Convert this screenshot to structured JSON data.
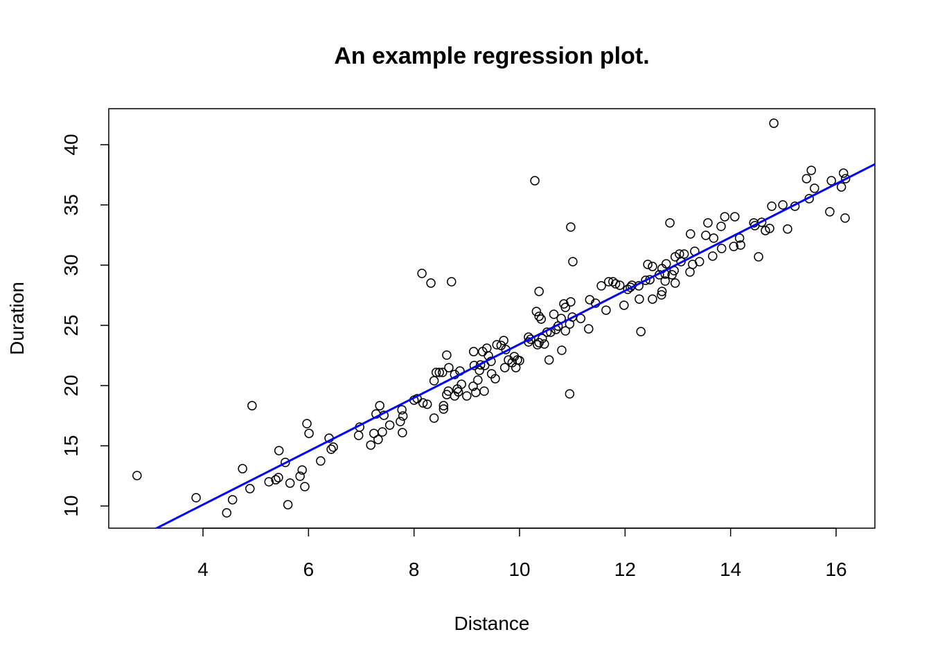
{
  "chart_data": {
    "type": "scatter",
    "title": "An example regression plot.",
    "x_label": "Distance",
    "y_label": "Duration",
    "xlim": [
      2.214,
      16.735
    ],
    "ylim": [
      8.16,
      42.99
    ],
    "xticks": [
      4,
      6,
      8,
      10,
      12,
      14,
      16
    ],
    "yticks": [
      10,
      15,
      20,
      25,
      30,
      35,
      40
    ],
    "point_color": "#000000",
    "regression": {
      "intercept": 1.23,
      "slope": 2.22,
      "color": "#0000ff"
    },
    "x": [
      2.75,
      3.87,
      4.45,
      4.56,
      4.75,
      4.89,
      4.93,
      5.25,
      5.38,
      5.43,
      5.44,
      5.56,
      5.61,
      5.65,
      5.84,
      5.88,
      5.93,
      5.97,
      6.01,
      6.23,
      6.39,
      6.43,
      6.47,
      6.95,
      6.97,
      7.18,
      7.24,
      7.28,
      7.32,
      7.35,
      7.4,
      7.43,
      7.54,
      7.74,
      7.77,
      7.79,
      7.78,
      8.0,
      8.06,
      8.15,
      8.17,
      8.25,
      8.32,
      8.38,
      8.38,
      8.42,
      8.48,
      8.54,
      8.56,
      8.56,
      8.62,
      8.62,
      8.65,
      8.66,
      8.71,
      8.77,
      8.77,
      8.82,
      8.84,
      8.87,
      8.9,
      9.0,
      9.12,
      9.13,
      9.14,
      9.17,
      9.21,
      9.24,
      9.26,
      9.3,
      9.33,
      9.34,
      9.38,
      9.41,
      9.46,
      9.47,
      9.54,
      9.57,
      9.65,
      9.7,
      9.72,
      9.74,
      9.79,
      9.86,
      9.9,
      9.93,
      9.96,
      10.0,
      10.17,
      10.17,
      10.21,
      10.29,
      10.32,
      10.34,
      10.37,
      10.37,
      10.37,
      10.41,
      10.43,
      10.47,
      10.52,
      10.56,
      10.59,
      10.65,
      10.69,
      10.73,
      10.79,
      10.8,
      10.84,
      10.87,
      10.87,
      10.95,
      10.95,
      10.97,
      10.97,
      11.0,
      11.01,
      11.16,
      11.31,
      11.33,
      11.44,
      11.55,
      11.64,
      11.69,
      11.77,
      11.82,
      11.9,
      11.98,
      12.05,
      12.1,
      12.13,
      12.26,
      12.27,
      12.3,
      12.39,
      12.43,
      12.47,
      12.52,
      12.52,
      12.65,
      12.69,
      12.7,
      12.7,
      12.76,
      12.76,
      12.78,
      12.85,
      12.89,
      12.93,
      12.95,
      12.95,
      13.03,
      13.06,
      13.12,
      13.23,
      13.24,
      13.28,
      13.32,
      13.41,
      13.53,
      13.57,
      13.66,
      13.68,
      13.82,
      13.83,
      13.89,
      14.06,
      14.08,
      14.17,
      14.19,
      14.44,
      14.46,
      14.53,
      14.59,
      14.66,
      14.74,
      14.78,
      14.82,
      14.99,
      15.08,
      15.22,
      15.44,
      15.49,
      15.53,
      15.59,
      15.88,
      15.91,
      16.1,
      16.14,
      16.17,
      16.18
    ],
    "values": [
      12.53,
      10.69,
      9.43,
      10.52,
      13.1,
      11.44,
      18.33,
      12.01,
      12.18,
      12.36,
      14.6,
      13.62,
      10.11,
      11.9,
      12.47,
      12.99,
      11.61,
      16.84,
      16.03,
      13.74,
      15.63,
      14.71,
      14.89,
      15.86,
      16.55,
      15.06,
      16.03,
      17.64,
      15.52,
      18.33,
      16.15,
      17.53,
      16.72,
      17.01,
      17.99,
      17.47,
      16.09,
      18.79,
      18.91,
      29.31,
      18.56,
      18.45,
      28.51,
      17.3,
      20.4,
      21.09,
      21.09,
      21.09,
      18.05,
      18.33,
      22.53,
      19.25,
      19.54,
      21.49,
      28.62,
      19.14,
      20.92,
      19.71,
      19.48,
      21.21,
      20.11,
      19.14,
      19.94,
      22.82,
      21.67,
      19.43,
      20.46,
      21.26,
      21.72,
      22.82,
      19.54,
      21.67,
      23.1,
      22.47,
      22.01,
      20.98,
      20.57,
      23.39,
      23.33,
      23.74,
      21.49,
      22.99,
      22.13,
      21.9,
      22.41,
      21.49,
      22.13,
      22.07,
      24.02,
      23.62,
      23.85,
      37.01,
      26.15,
      23.39,
      25.75,
      23.56,
      27.82,
      25.52,
      23.91,
      23.45,
      24.43,
      22.13,
      24.43,
      25.92,
      24.66,
      24.94,
      25.57,
      22.93,
      26.78,
      26.49,
      24.54,
      19.31,
      25.11,
      26.95,
      33.16,
      25.69,
      30.29,
      25.57,
      24.71,
      27.13,
      26.84,
      28.28,
      26.26,
      28.62,
      28.62,
      28.45,
      28.33,
      26.67,
      27.99,
      28.16,
      28.33,
      28.28,
      27.18,
      24.48,
      28.74,
      30.06,
      28.79,
      29.89,
      27.18,
      29.2,
      27.53,
      27.82,
      29.71,
      29.25,
      28.68,
      30.11,
      33.51,
      29.2,
      29.54,
      30.69,
      28.51,
      30.92,
      30.29,
      30.92,
      29.43,
      32.59,
      30.06,
      31.15,
      30.29,
      32.47,
      33.51,
      30.75,
      32.24,
      33.22,
      31.38,
      34.02,
      31.55,
      34.02,
      32.24,
      31.67,
      33.51,
      33.28,
      30.69,
      33.56,
      32.87,
      33.05,
      34.89,
      41.78,
      35.0,
      33.0,
      34.89,
      37.18,
      35.52,
      37.87,
      36.38,
      34.43,
      37.01,
      36.49,
      37.64,
      33.91,
      37.18
    ]
  }
}
